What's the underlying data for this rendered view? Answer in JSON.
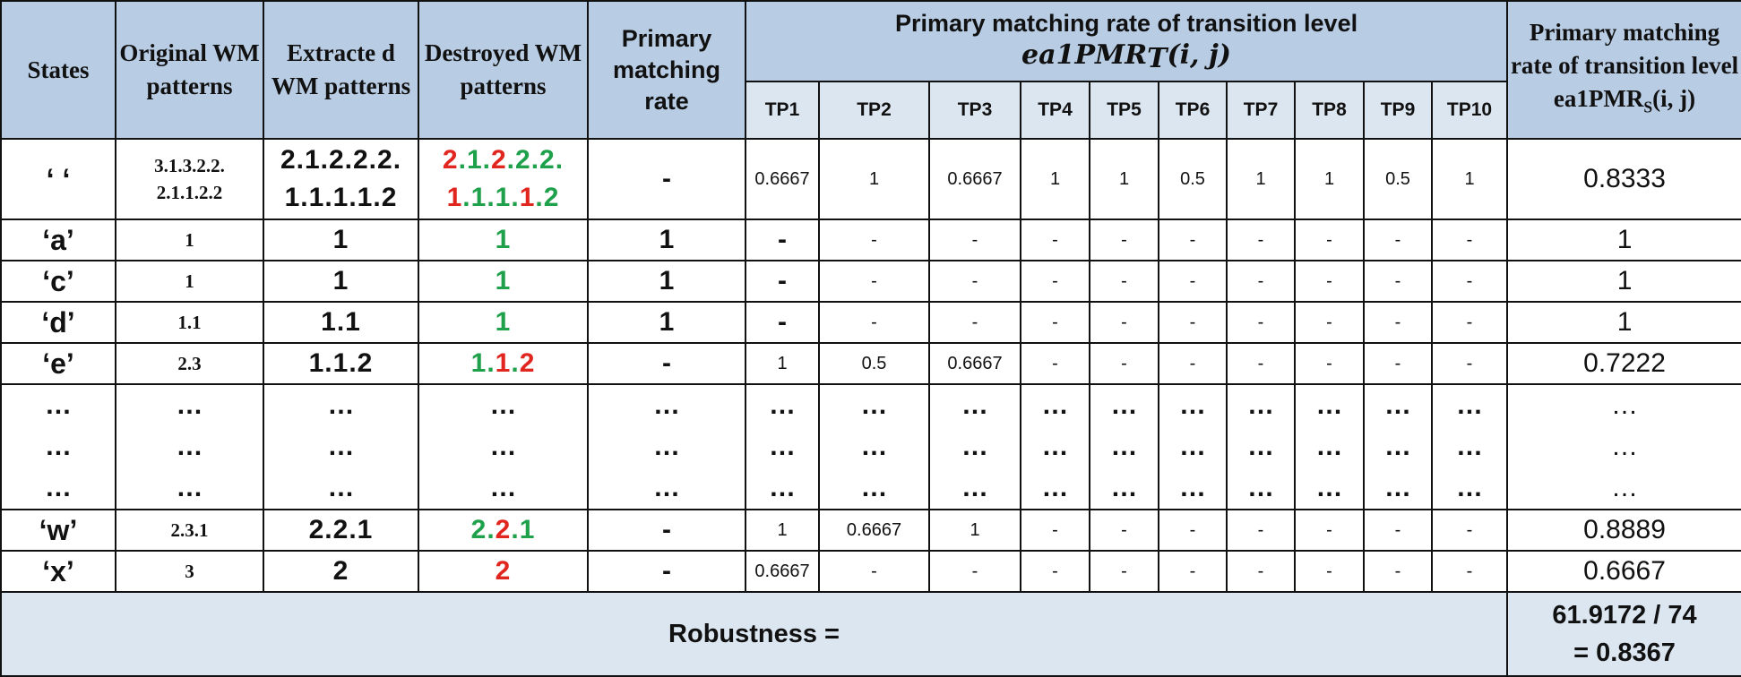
{
  "header": {
    "states": "States",
    "original": "Original WM patterns",
    "extracted": "Extracte d WM patterns",
    "destroyed": "Destroyed WM patterns",
    "primary_rate": "Primary matching rate",
    "transition_title": "Primary matching rate of transition level",
    "transition_formula_prefix": "ea1",
    "transition_formula_main": "PMR",
    "transition_formula_sub": "T",
    "transition_formula_args": "(i, j)",
    "final_title": "Primary matching rate of transition level",
    "final_formula_prefix": "ea1PMR",
    "final_formula_sub": "S",
    "final_formula_args": "(i, j)",
    "tp": [
      "TP1",
      "TP2",
      "TP3",
      "TP4",
      "TP5",
      "TP6",
      "TP7",
      "TP8",
      "TP9",
      "TP10"
    ]
  },
  "rows": [
    {
      "state": "‘ ‘",
      "original": [
        "3.1.3.2.2.",
        "2.1.1.2.2"
      ],
      "extracted": [
        "2.1.2.2.2.",
        "1.1.1.1.2"
      ],
      "destroyed": [
        "2.1.2.2.2.",
        "1.1.1.1.2"
      ],
      "destroyed_colors": [
        [
          "r",
          "g",
          "r",
          "g",
          "g"
        ],
        [
          "r",
          "g",
          "g",
          "r",
          "g"
        ]
      ],
      "primary": "-",
      "tp": [
        "0.6667",
        "1",
        "0.6667",
        "1",
        "1",
        "0.5",
        "1",
        "1",
        "0.5",
        "1"
      ],
      "final": "0.8333"
    },
    {
      "state": "‘a’",
      "original": [
        "1"
      ],
      "extracted": [
        "1"
      ],
      "destroyed": [
        "1"
      ],
      "destroyed_colors": [
        [
          "g"
        ]
      ],
      "primary": "1",
      "tp": [
        "-",
        "-",
        "-",
        "-",
        "-",
        "-",
        "-",
        "-",
        "-",
        "-"
      ],
      "final": "1"
    },
    {
      "state": "‘c’",
      "original": [
        "1"
      ],
      "extracted": [
        "1"
      ],
      "destroyed": [
        "1"
      ],
      "destroyed_colors": [
        [
          "g"
        ]
      ],
      "primary": "1",
      "tp": [
        "-",
        "-",
        "-",
        "-",
        "-",
        "-",
        "-",
        "-",
        "-",
        "-"
      ],
      "final": "1"
    },
    {
      "state": "‘d’",
      "original": [
        "1.1"
      ],
      "extracted": [
        "1.1"
      ],
      "destroyed": [
        "1"
      ],
      "destroyed_colors": [
        [
          "g"
        ]
      ],
      "primary": "1",
      "tp": [
        "-",
        "-",
        "-",
        "-",
        "-",
        "-",
        "-",
        "-",
        "-",
        "-"
      ],
      "final": "1"
    },
    {
      "state": "‘e’",
      "original": [
        "2.3"
      ],
      "extracted": [
        "1.1.2"
      ],
      "destroyed": [
        "1.1.2"
      ],
      "destroyed_colors": [
        [
          "g",
          "r",
          "r"
        ]
      ],
      "primary": "-",
      "tp": [
        "1",
        "0.5",
        "0.6667",
        "-",
        "-",
        "-",
        "-",
        "-",
        "-",
        "-"
      ],
      "final": "0.7222"
    },
    {
      "state": "‘w’",
      "original": [
        "2.3.1"
      ],
      "extracted": [
        "2.2.1"
      ],
      "destroyed": [
        "2.2.1"
      ],
      "destroyed_colors": [
        [
          "g",
          "r",
          "g"
        ]
      ],
      "primary": "-",
      "tp": [
        "1",
        "0.6667",
        "1",
        "-",
        "-",
        "-",
        "-",
        "-",
        "-",
        "-"
      ],
      "final": "0.8889"
    },
    {
      "state": "‘x’",
      "original": [
        "3"
      ],
      "extracted": [
        "2"
      ],
      "destroyed": [
        "2"
      ],
      "destroyed_colors": [
        [
          "r"
        ]
      ],
      "primary": "-",
      "tp": [
        "0.6667",
        "-",
        "-",
        "-",
        "-",
        "-",
        "-",
        "-",
        "-",
        "-"
      ],
      "final": "0.6667"
    }
  ],
  "ellipsis": "…",
  "robustness": {
    "label": "Robustness  =",
    "value_line1": "61.9172 / 74",
    "value_line2": "=  0.8367"
  },
  "colors": {
    "header_bg": "#b8cce4",
    "subheader_bg": "#dce6f1",
    "green": "#1fa04a",
    "red": "#e0261f"
  }
}
